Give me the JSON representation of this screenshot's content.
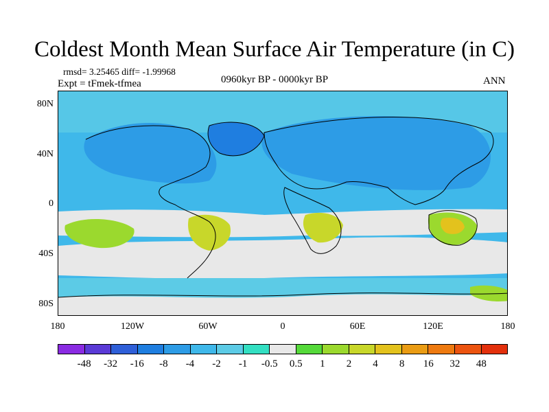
{
  "title": "Coldest Month Mean Surface Air Temperature (in C)",
  "stats": {
    "rmsd": "rmsd= 3.25465 diff= -1.99968",
    "expt": "Expt = tFmek-tfmea"
  },
  "period": "0960kyr BP - 0000kyr BP",
  "season": "ANN",
  "lat_labels": [
    "80N",
    "40N",
    "0",
    "40S",
    "80S"
  ],
  "lon_labels": [
    "180",
    "120W",
    "60W",
    "0",
    "60E",
    "120E",
    "180"
  ],
  "colorbar": {
    "colors": [
      "#8a2be2",
      "#5a3ad6",
      "#2f5fd8",
      "#1f7ee0",
      "#2d9ce6",
      "#3fb8ea",
      "#5ccbe6",
      "#33dfc2",
      "#e8e8e8",
      "#55d93a",
      "#9bd92e",
      "#c8d72a",
      "#e3c21d",
      "#ea9c14",
      "#ee7a10",
      "#ec5410",
      "#e3300c"
    ],
    "labels": [
      "-48",
      "-32",
      "-16",
      "-8",
      "-4",
      "-2",
      "-1",
      "-0.5",
      "0.5",
      "1",
      "2",
      "4",
      "8",
      "16",
      "32",
      "48"
    ]
  }
}
